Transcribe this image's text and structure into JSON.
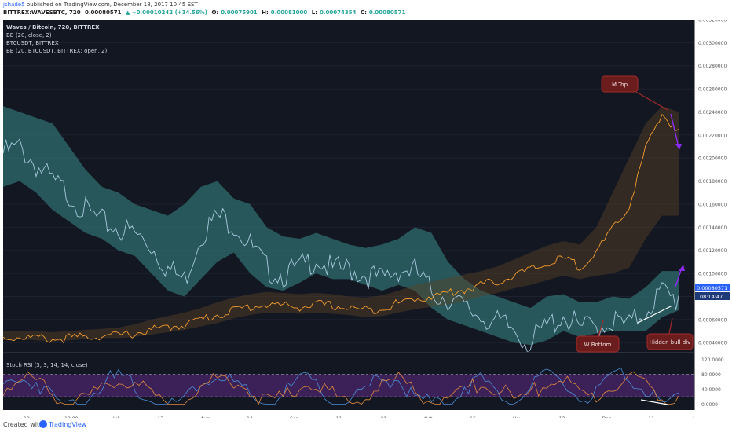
{
  "header": {
    "author": "jshade5",
    "published": " published on TradingView.com, December 18, 2017 10:45 EST",
    "symbol": "BITTREX:WAVESBTC, 720",
    "last": "0.00080571",
    "change": "▲ +0.00010242 (+14.56%)",
    "open_label": "O:",
    "open": "0.00075901",
    "high_label": "H:",
    "high": "0.00081000",
    "low_label": "L:",
    "low": "0.00074354",
    "close_label": "C:",
    "close": "0.00080571"
  },
  "legend": {
    "main": "Waves / Bitcoin, 720, BITTREX",
    "bb1": "BB (20, close, 2)",
    "overlay": "BTCUSDT, BITTREX",
    "bb2": "BB (20, BTCUSDT, BITTREX: open, 2)",
    "stoch": "Stoch RSI (3, 3, 14, 14, close)"
  },
  "annotations": {
    "m_top": "M Top",
    "w_bottom": "W Bottom",
    "hidden_div": "Hidden bull div"
  },
  "price_tag": {
    "value": "0.00080571",
    "countdown": "08:14:47"
  },
  "footer": {
    "created": "Created with",
    "brand": "TradingView"
  },
  "colors": {
    "background": "#131722",
    "waves_line": "#a9c9e0",
    "waves_band": "#2f6e6e",
    "btc_line": "#f39c2e",
    "btc_band": "#5a4226",
    "annotation_fill": "#6b1d1d",
    "arrow": "#8b2cf5",
    "stoch_k": "#4a8ed8",
    "stoch_d": "#e08a3a",
    "stoch_band": "#5e2a86"
  },
  "chart_data": [
    {
      "type": "line",
      "title": "Waves / Bitcoin, 720, BITTREX",
      "x_tick_labels": [
        "12",
        "19:00",
        "Jul",
        "17",
        "Aug",
        "14",
        "Sep",
        "11",
        "21",
        "Oct",
        "16",
        "Nov",
        "13",
        "Dec",
        "11",
        "25"
      ],
      "y_tick_labels": [
        "0.00320000",
        "0.00300000",
        "0.00280000",
        "0.00260000",
        "0.00240000",
        "0.00220000",
        "0.00200000",
        "0.00180000",
        "0.00160000",
        "0.00140000",
        "0.00120000",
        "0.00100000",
        "0.00080000",
        "0.00060000",
        "0.00040000"
      ],
      "ylim": [
        0.00034,
        0.0032
      ],
      "series": [
        {
          "name": "BB (20, close, 2)",
          "note_units": "price in BTC, sampled every ~6 days from mid-June to mid-December 2017",
          "values": [
            0.0021,
            0.00215,
            0.002,
            0.00185,
            0.00175,
            0.0016,
            0.0015,
            0.00145,
            0.0014,
            0.0013,
            0.0011,
            0.001,
            0.0014,
            0.00155,
            0.0015,
            0.0013,
            0.0011,
            0.00105,
            0.0011,
            0.0012,
            0.00108,
            0.0011,
            0.00105,
            0.001,
            0.0011,
            0.00108,
            0.0009,
            0.00085,
            0.00075,
            0.0007,
            0.00062,
            0.00058,
            0.00045,
            0.0006,
            0.0007,
            0.00058,
            0.0006,
            0.00065,
            0.0006,
            0.00075,
            0.0009,
            0.00080571
          ],
          "upper": [
            0.00245,
            0.0024,
            0.00235,
            0.0023,
            0.0021,
            0.0019,
            0.00175,
            0.0017,
            0.0016,
            0.00155,
            0.0015,
            0.0016,
            0.00175,
            0.0018,
            0.00165,
            0.0016,
            0.0014,
            0.00132,
            0.0013,
            0.00135,
            0.0013,
            0.00125,
            0.00122,
            0.00125,
            0.0013,
            0.0014,
            0.00135,
            0.0011,
            0.00095,
            0.00085,
            0.0008,
            0.00075,
            0.0007,
            0.0008,
            0.00082,
            0.00075,
            0.00075,
            0.0008,
            0.00078,
            0.00088,
            0.00102,
            0.00102
          ],
          "lower": [
            0.00175,
            0.0018,
            0.0017,
            0.00155,
            0.00145,
            0.00135,
            0.0013,
            0.0012,
            0.00115,
            0.001,
            0.00085,
            0.0008,
            0.00095,
            0.0011,
            0.00118,
            0.001,
            0.00088,
            0.00085,
            0.00092,
            0.001,
            0.00095,
            0.00095,
            0.0009,
            0.00085,
            0.0009,
            0.00085,
            0.0007,
            0.0006,
            0.00055,
            0.0005,
            0.00045,
            0.0004,
            0.00038,
            0.00042,
            0.0005,
            0.00045,
            0.00048,
            0.0005,
            0.0005,
            0.0005,
            0.00062,
            0.00068
          ]
        },
        {
          "name": "BB (20, BTCUSDT, BITTREX: open, 2)",
          "note_units": "drawn on the chart's overlay scale",
          "values": [
            0.00046,
            0.00047,
            0.00046,
            0.00045,
            0.00046,
            0.00047,
            0.00048,
            0.00048,
            0.0005,
            0.00053,
            0.00055,
            0.00058,
            0.00062,
            0.00066,
            0.0007,
            0.00073,
            0.00075,
            0.00074,
            0.00073,
            0.00075,
            0.00074,
            0.00072,
            0.0007,
            0.00072,
            0.00076,
            0.0008,
            0.00082,
            0.00085,
            0.00088,
            0.00092,
            0.00095,
            0.001,
            0.00105,
            0.0011,
            0.00115,
            0.00108,
            0.0012,
            0.0014,
            0.0016,
            0.0021,
            0.0024,
            0.00225
          ],
          "upper": [
            0.0005,
            0.0005,
            0.0005,
            0.00049,
            0.0005,
            0.00051,
            0.00052,
            0.00053,
            0.00056,
            0.0006,
            0.00063,
            0.00066,
            0.0007,
            0.00075,
            0.00079,
            0.00082,
            0.00084,
            0.00083,
            0.00082,
            0.00083,
            0.00082,
            0.0008,
            0.00079,
            0.00081,
            0.00085,
            0.0009,
            0.00093,
            0.00096,
            0.00099,
            0.00102,
            0.00106,
            0.00112,
            0.00118,
            0.00124,
            0.00128,
            0.00125,
            0.0014,
            0.0017,
            0.002,
            0.0023,
            0.00245,
            0.0024
          ],
          "lower": [
            0.00042,
            0.00043,
            0.00042,
            0.00041,
            0.00042,
            0.00043,
            0.00044,
            0.00044,
            0.00045,
            0.00047,
            0.00049,
            0.00051,
            0.00054,
            0.00057,
            0.00061,
            0.00064,
            0.00066,
            0.00066,
            0.00065,
            0.00066,
            0.00065,
            0.00064,
            0.00062,
            0.00063,
            0.00066,
            0.00069,
            0.00071,
            0.00073,
            0.00076,
            0.0008,
            0.00083,
            0.00087,
            0.0009,
            0.00094,
            0.00098,
            0.00095,
            0.00098,
            0.001,
            0.00105,
            0.0013,
            0.0015,
            0.0015
          ]
        }
      ]
    },
    {
      "type": "line",
      "title": "Stoch RSI (3, 3, 14, 14, close)",
      "y_tick_labels": [
        "120.0000",
        "80.0000",
        "40.0000",
        "0.0000"
      ],
      "ylim": [
        -5,
        125
      ],
      "band": [
        20,
        80
      ],
      "series": [
        {
          "name": "K",
          "values": [
            60,
            80,
            75,
            30,
            10,
            25,
            70,
            85,
            60,
            20,
            5,
            30,
            75,
            90,
            70,
            30,
            10,
            40,
            80,
            65,
            20,
            10,
            50,
            85,
            75,
            35,
            10,
            20,
            60,
            80,
            40,
            15,
            60,
            85,
            70,
            25,
            40,
            80,
            90,
            50,
            10,
            30
          ]
        },
        {
          "name": "D",
          "values": [
            55,
            72,
            78,
            45,
            18,
            20,
            50,
            78,
            72,
            35,
            12,
            18,
            55,
            82,
            80,
            45,
            18,
            28,
            62,
            72,
            38,
            15,
            30,
            70,
            80,
            50,
            20,
            15,
            42,
            72,
            55,
            25,
            40,
            75,
            78,
            40,
            32,
            62,
            85,
            68,
            25,
            22
          ]
        }
      ]
    }
  ]
}
